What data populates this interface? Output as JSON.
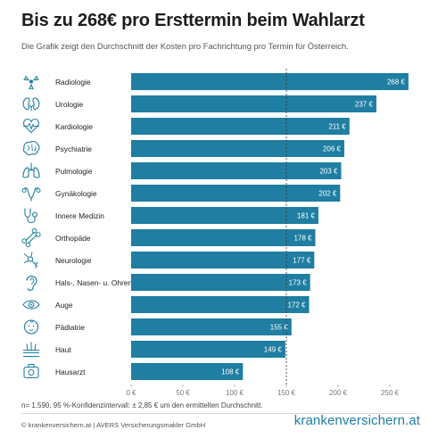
{
  "title": "Bis zu 268€ pro Ersttermin beim Wahlarzt",
  "subtitle": "Die Grafik zeigt den Durchschnitt der Kosten pro Fachrichtung pro Termin für Österreich.",
  "footnote": "n= 1.590, 95 %-Konfidenzintervall: ± 2,85 € um den ermittelten Durchschnitt.",
  "source": "© krankenversichern.at | AVERS Versicherungsmakler GmbH",
  "brand": "krankenversichern.at",
  "colors": {
    "bar": "#1f7ea1",
    "icon": "#1f7ea1",
    "average_line": "#333333"
  },
  "chart_data": {
    "type": "bar",
    "orientation": "horizontal",
    "categories": [
      "Radiologie",
      "Urologie",
      "Kardiologie",
      "Psychiatrie",
      "Pulmologie",
      "Gynäkologie",
      "Innere Medizin",
      "Orthopäde",
      "Neurologie",
      "Hals-, Nasen- u. Ohren",
      "Auge",
      "Pädiatrie",
      "Haut",
      "Hausarzt"
    ],
    "values": [
      268,
      237,
      211,
      206,
      203,
      202,
      181,
      178,
      177,
      173,
      172,
      155,
      149,
      108
    ],
    "value_labels": [
      "268 €",
      "237 €",
      "211 €",
      "206 €",
      "203 €",
      "202 €",
      "181 €",
      "178 €",
      "177 €",
      "173 €",
      "172 €",
      "155 €",
      "149 €",
      "108 €"
    ],
    "icons": [
      "radiation-icon",
      "kidney-icon",
      "heart-pulse-icon",
      "brain-icon",
      "lungs-icon",
      "uterus-icon",
      "stethoscope-icon",
      "bone-icon",
      "neuron-icon",
      "ear-icon",
      "eye-icon",
      "baby-icon",
      "skin-icon",
      "medical-bag-icon"
    ],
    "xlim": [
      0,
      270
    ],
    "ticks": [
      0,
      50,
      100,
      150,
      200,
      250
    ],
    "tick_labels": [
      "0 €",
      "50 €",
      "100 €",
      "150 €",
      "200 €",
      "250 €"
    ],
    "average_line": 150,
    "grid": false,
    "legend": "none"
  }
}
